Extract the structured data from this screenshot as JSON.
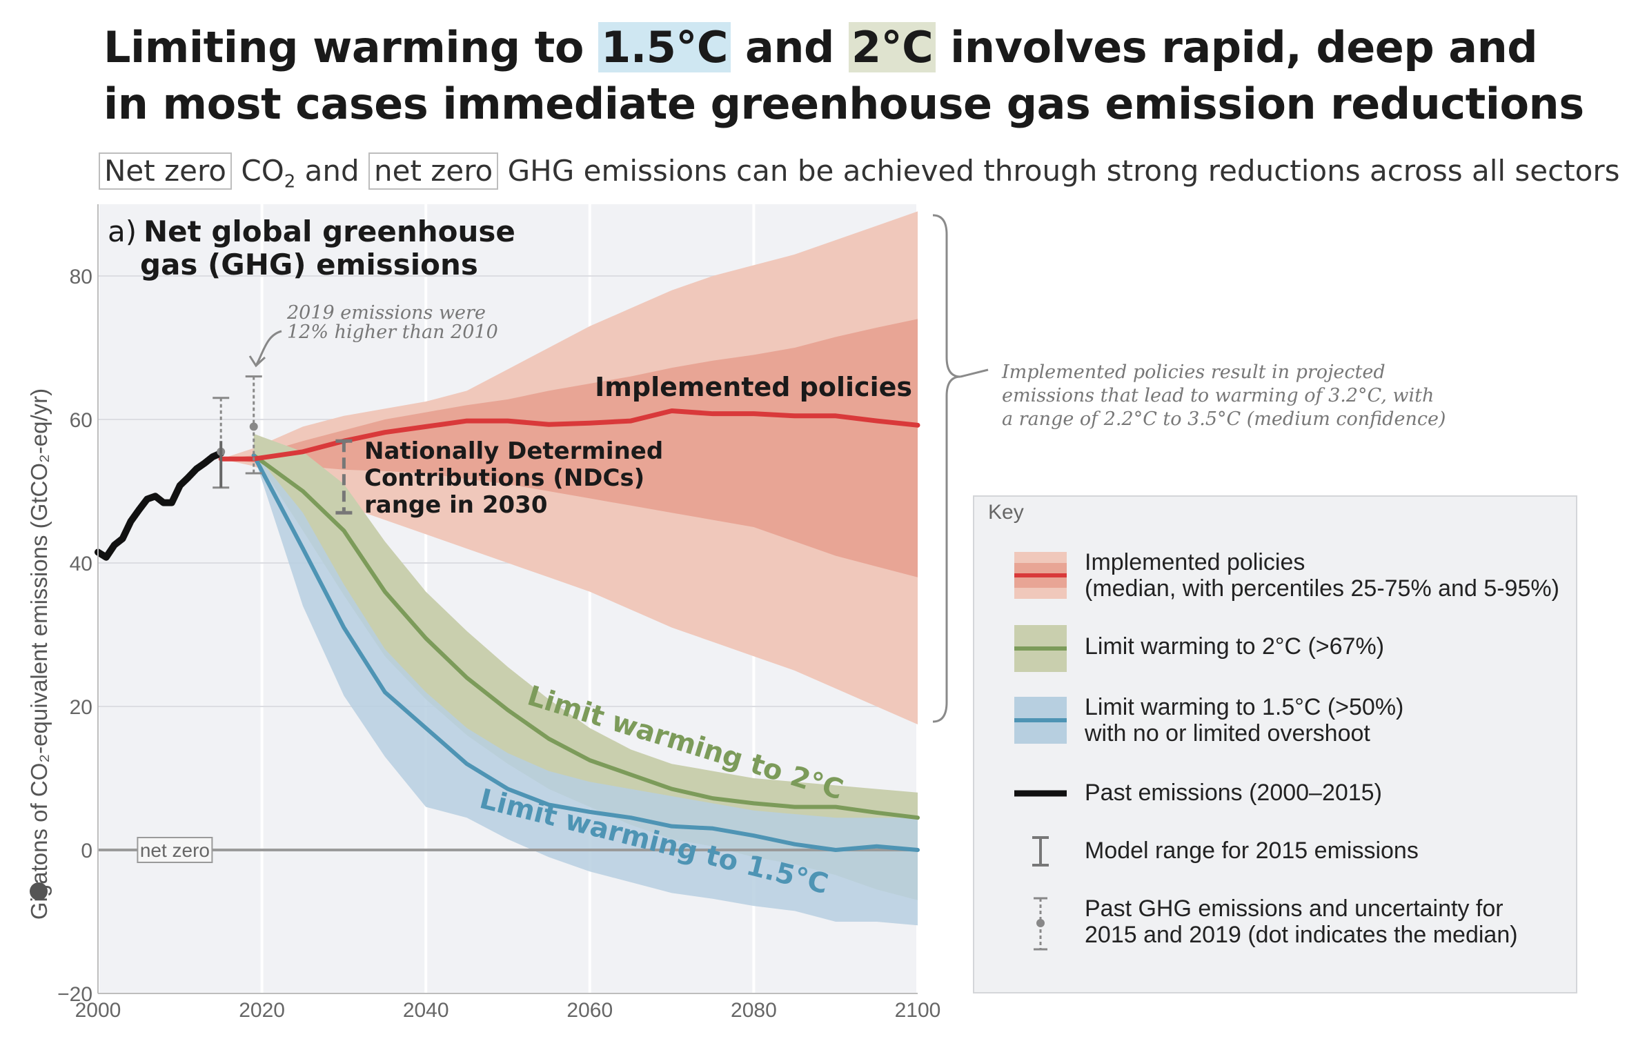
{
  "title": {
    "part1": "Limiting warming to ",
    "hl1": "1.5°C",
    "part2": " and ",
    "hl2": "2°C",
    "part3": " involves rapid, deep and",
    "line2": "in most cases immediate greenhouse gas emission reductions"
  },
  "subtitle": {
    "box1": "Net zero",
    "co2": "CO",
    "co2_sub": "2",
    "and": " and ",
    "box2": "net zero",
    "rest": " GHG emissions can be achieved through strong reductions across all sectors"
  },
  "colors": {
    "implemented_outer": "#f0c8bb",
    "implemented_inner": "#e8a595",
    "implemented_line": "#d9393a",
    "limit2_band": "#c9cfae",
    "limit2_line": "#7c9b5a",
    "limit15_band": "#b7cfe0",
    "limit15_line": "#4e94b4",
    "past_line": "#111111",
    "plot_bg": "#f1f2f5"
  },
  "chart_data": {
    "type": "area",
    "panel_label": "a)",
    "title": "Net global greenhouse gas (GHG) emissions",
    "ylabel": "Gigatons of CO₂-equivalent emissions (GtCO₂-eq/yr)",
    "xlim": [
      2000,
      2100
    ],
    "ylim": [
      -20,
      90
    ],
    "x_ticks": [
      "2000",
      "2020",
      "2040",
      "2060",
      "2080",
      "2100"
    ],
    "y_ticks": [
      "80",
      "60",
      "40",
      "20",
      "0",
      "−20"
    ],
    "grid": true,
    "net_zero_label": "net zero",
    "series": [
      {
        "name": "Past emissions (2000–2015)",
        "x": [
          2000,
          2001,
          2002,
          2003,
          2004,
          2005,
          2006,
          2007,
          2008,
          2009,
          2010,
          2011,
          2012,
          2013,
          2014,
          2015
        ],
        "median": [
          41.5,
          40.8,
          42.5,
          43.4,
          45.8,
          47.4,
          48.9,
          49.3,
          48.4,
          48.4,
          50.8,
          51.9,
          53.1,
          53.9,
          54.8,
          55.3
        ]
      },
      {
        "name": "Implemented policies",
        "x": [
          2015,
          2019,
          2025,
          2030,
          2035,
          2040,
          2045,
          2050,
          2055,
          2060,
          2065,
          2070,
          2075,
          2080,
          2085,
          2090,
          2095,
          2100
        ],
        "median": [
          54.5,
          54.5,
          55.5,
          57.0,
          58.2,
          59.0,
          59.8,
          59.8,
          59.3,
          59.5,
          59.8,
          61.2,
          60.8,
          60.8,
          60.5,
          60.5,
          59.8,
          59.2
        ],
        "p25": [
          54.5,
          54.0,
          53.5,
          53.0,
          52.8,
          52.5,
          51.7,
          51.0,
          50.0,
          49.0,
          48.0,
          47.0,
          46.0,
          45.0,
          43.0,
          41.0,
          39.5,
          38.0
        ],
        "p75": [
          54.5,
          55.0,
          57.0,
          58.5,
          60.0,
          61.0,
          62.0,
          62.8,
          64.0,
          65.0,
          66.0,
          67.2,
          68.2,
          69.0,
          70.0,
          71.5,
          72.8,
          74.0
        ],
        "p5": [
          54.5,
          53.5,
          50.5,
          48.0,
          46.0,
          44.0,
          42.0,
          40.0,
          38.0,
          36.0,
          33.5,
          31.0,
          29.0,
          27.0,
          25.0,
          22.5,
          20.0,
          17.5
        ],
        "p95": [
          54.5,
          56.0,
          59.0,
          60.5,
          61.5,
          62.5,
          64.0,
          67.0,
          70.0,
          73.0,
          75.5,
          78.0,
          80.0,
          81.5,
          83.0,
          85.0,
          87.0,
          89.0
        ]
      },
      {
        "name": "Limit warming to 2°C (>67%)",
        "x": [
          2019,
          2025,
          2030,
          2035,
          2040,
          2045,
          2050,
          2055,
          2060,
          2065,
          2070,
          2075,
          2080,
          2085,
          2090,
          2095,
          2100
        ],
        "median": [
          55.0,
          50.0,
          44.5,
          36.0,
          29.5,
          24.0,
          19.5,
          15.5,
          12.5,
          10.5,
          8.5,
          7.2,
          6.5,
          6.0,
          6.0,
          5.2,
          4.5
        ],
        "p5": [
          55.0,
          44.5,
          35.5,
          27.0,
          21.0,
          16.0,
          12.0,
          8.5,
          6.0,
          3.5,
          1.5,
          0.5,
          -1.0,
          -2.0,
          -3.5,
          -5.5,
          -7.0
        ],
        "p95": [
          58.0,
          55.5,
          51.0,
          43.0,
          36.0,
          30.5,
          25.5,
          21.0,
          17.0,
          14.0,
          12.0,
          11.0,
          10.0,
          9.5,
          9.0,
          8.5,
          8.0
        ]
      },
      {
        "name": "Limit warming to 1.5°C (>50%) with no or limited overshoot",
        "x": [
          2019,
          2025,
          2030,
          2035,
          2040,
          2045,
          2050,
          2055,
          2060,
          2065,
          2070,
          2075,
          2080,
          2085,
          2090,
          2095,
          2100
        ],
        "median": [
          55.0,
          42.0,
          31.0,
          22.0,
          17.0,
          12.0,
          8.5,
          6.3,
          5.3,
          4.5,
          3.3,
          3.0,
          2.0,
          0.8,
          0.0,
          0.5,
          0.0
        ],
        "p5": [
          55.0,
          34.0,
          21.5,
          13.0,
          6.0,
          4.5,
          1.5,
          -1.0,
          -3.0,
          -4.5,
          -6.0,
          -6.8,
          -7.8,
          -8.5,
          -10.0,
          -10.0,
          -10.5
        ],
        "p95": [
          55.5,
          47.0,
          37.0,
          28.0,
          22.0,
          17.0,
          13.5,
          11.0,
          9.5,
          8.5,
          7.5,
          6.5,
          5.5,
          5.0,
          4.5,
          4.5,
          4.5
        ]
      }
    ],
    "uncertainty_markers": [
      {
        "year": 2015,
        "low": 50.5,
        "high": 63.0,
        "median": 55.5
      },
      {
        "year": 2019,
        "low": 52.5,
        "high": 66.0,
        "median": 59.0
      }
    ],
    "ndc_range_2030": {
      "year": 2030,
      "low": 47.0,
      "high": 57.0
    },
    "annotations": {
      "implemented_label": "Implemented policies",
      "ndc_label_1": "Nationally Determined",
      "ndc_label_2": "Contributions (NDCs)",
      "ndc_label_3": "range in 2030",
      "emissions_note_1": "2019 emissions were",
      "emissions_note_2": "12% higher than 2010",
      "limit2_label": "Limit warming to 2°C",
      "limit15_label": "Limit warming to 1.5°C",
      "brace_note_1": "Implemented policies result in projected",
      "brace_note_2": "emissions that lead to warming of 3.2°C, with",
      "brace_note_3": "a range of 2.2°C to 3.5°C (medium confidence)"
    }
  },
  "key": {
    "title": "Key",
    "items": [
      {
        "label": "Implemented policies\n(median, with percentiles 25-75% and 5-95%)"
      },
      {
        "label": "Limit warming to 2°C (>67%)"
      },
      {
        "label": "Limit warming to 1.5°C (>50%)\nwith no or limited overshoot"
      },
      {
        "label": "Past emissions (2000–2015)"
      },
      {
        "label": "Model range for 2015 emissions"
      },
      {
        "label": "Past GHG emissions and uncertainty for\n2015 and 2019 (dot indicates the median)"
      }
    ]
  }
}
